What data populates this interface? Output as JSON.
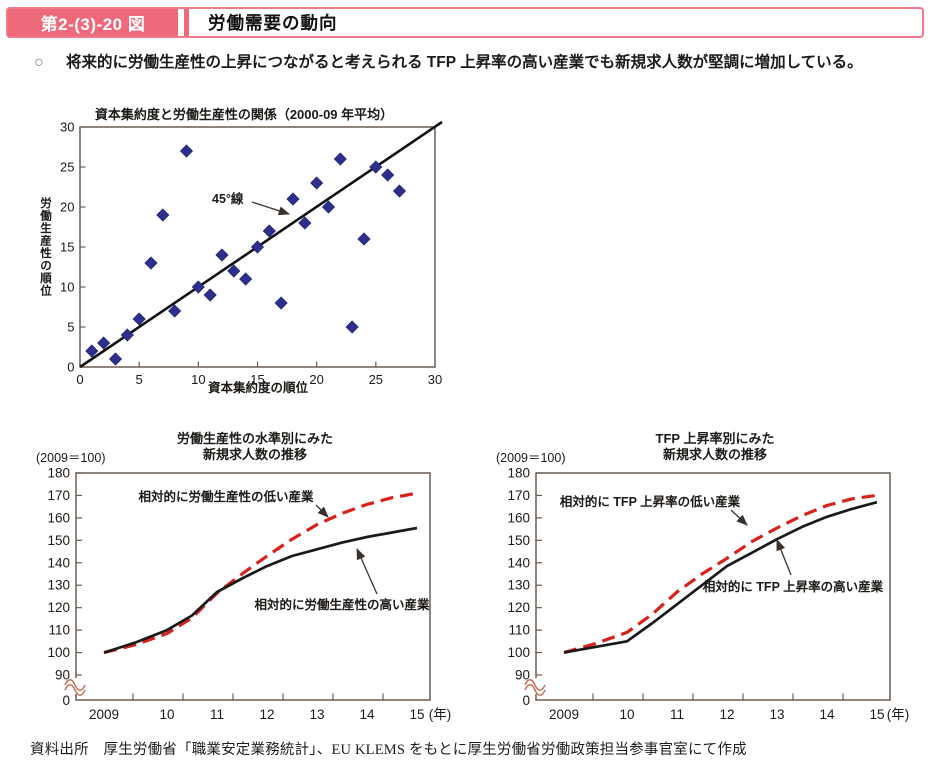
{
  "header": {
    "badge_label": "第2-(3)-20 図",
    "title": "労働需要の動向"
  },
  "lead": {
    "marker": "○",
    "text": "将来的に労働生産性の上昇につながると考えられる TFP 上昇率の高い産業でも新規求人数が堅調に増加している。"
  },
  "source": "資料出所　厚生労働省「職業安定業務統計」、EU KLEMS をもとに厚生労働省労働政策担当参事官室にて作成",
  "colors": {
    "accent_pink": "#ee6a7b",
    "border_pink": "#f2788c",
    "scatter_marker": "#2d2f8f",
    "line_red": "#d7211b",
    "line_black": "#1a1a1a",
    "frame": "#6a5d52"
  },
  "chart_data": [
    {
      "id": "capital-vs-productivity",
      "type": "scatter",
      "title": "資本集約度と労働生産性の関係（2000-09 年平均）",
      "xlabel": "資本集約度の順位",
      "ylabel": "労働生産性の順位",
      "xlim": [
        0,
        30
      ],
      "ylim": [
        0,
        30
      ],
      "xticks": [
        0,
        5,
        10,
        15,
        20,
        25,
        30
      ],
      "yticks": [
        0,
        5,
        10,
        15,
        20,
        25,
        30
      ],
      "marker": "diamond",
      "marker_color": "#2d2f8f",
      "points": [
        [
          1,
          2
        ],
        [
          2,
          3
        ],
        [
          3,
          1
        ],
        [
          4,
          4
        ],
        [
          5,
          6
        ],
        [
          6,
          13
        ],
        [
          7,
          19
        ],
        [
          8,
          7
        ],
        [
          9,
          27
        ],
        [
          10,
          10
        ],
        [
          11,
          9
        ],
        [
          12,
          14
        ],
        [
          13,
          12
        ],
        [
          14,
          11
        ],
        [
          15,
          15
        ],
        [
          16,
          17
        ],
        [
          17,
          8
        ],
        [
          18,
          21
        ],
        [
          19,
          18
        ],
        [
          20,
          23
        ],
        [
          21,
          20
        ],
        [
          22,
          26
        ],
        [
          23,
          5
        ],
        [
          24,
          16
        ],
        [
          25,
          25
        ],
        [
          26,
          24
        ],
        [
          27,
          22
        ]
      ],
      "reference_line": {
        "label": "45°線",
        "from": [
          0,
          0
        ],
        "to": [
          30,
          30
        ]
      }
    },
    {
      "id": "new-job-openings-by-productivity-level",
      "type": "line",
      "title_lines": [
        "労働生産性の水準別にみた",
        "新規求人数の推移"
      ],
      "unit_note": "(2009＝100)",
      "x_tick_labels": [
        "2009",
        "10",
        "11",
        "12",
        "13",
        "14",
        "15"
      ],
      "x_axis_suffix": "(年)",
      "xlim": [
        2009,
        2015
      ],
      "yticks": [
        180,
        170,
        160,
        150,
        140,
        130,
        120,
        110,
        100,
        90
      ],
      "y_base_label": "0",
      "axis_break": true,
      "ylim_display": [
        90,
        180
      ],
      "series": [
        {
          "name": "相対的に労働生産性の低い産業",
          "color": "#d7211b",
          "style": "dashed",
          "x": [
            2009,
            2009.5,
            2010,
            2010.5,
            2011,
            2011.5,
            2012,
            2012.5,
            2013,
            2013.5,
            2014,
            2014.5,
            2015
          ],
          "y": [
            100,
            103.5,
            108.5,
            115.5,
            126.5,
            135,
            143,
            150.5,
            157,
            162,
            166,
            169,
            171
          ]
        },
        {
          "name": "相対的に労働生産性の高い産業",
          "color": "#1a1a1a",
          "style": "solid",
          "x": [
            2009,
            2009.5,
            2010,
            2010.5,
            2011,
            2011.5,
            2012,
            2012.5,
            2013,
            2013.5,
            2014,
            2014.5,
            2015
          ],
          "y": [
            100,
            104.5,
            110,
            116.5,
            127,
            133,
            138.5,
            143,
            146,
            149,
            151.5,
            153.5,
            155.5
          ]
        }
      ]
    },
    {
      "id": "new-job-openings-by-tfp-growth",
      "type": "line",
      "title_lines": [
        "TFP 上昇率別にみた",
        "新規求人数の推移"
      ],
      "unit_note": "(2009＝100)",
      "x_tick_labels": [
        "2009",
        "10",
        "11",
        "12",
        "13",
        "14",
        "15"
      ],
      "x_axis_suffix": "(年)",
      "xlim": [
        2009,
        2015
      ],
      "yticks": [
        180,
        170,
        160,
        150,
        140,
        130,
        120,
        110,
        100,
        90
      ],
      "y_base_label": "0",
      "axis_break": true,
      "ylim_display": [
        90,
        180
      ],
      "series": [
        {
          "name": "相対的に TFP 上昇率の低い産業",
          "color": "#d7211b",
          "style": "dashed",
          "x": [
            2009,
            2009.5,
            2010,
            2010.5,
            2011,
            2011.5,
            2012,
            2012.5,
            2013,
            2013.5,
            2014,
            2014.5,
            2015
          ],
          "y": [
            100,
            104,
            109,
            117,
            127,
            135,
            142,
            149.5,
            155.5,
            161,
            165.5,
            168.5,
            170
          ]
        },
        {
          "name": "相対的に TFP 上昇率の高い産業",
          "color": "#1a1a1a",
          "style": "solid",
          "x": [
            2009,
            2009.5,
            2010,
            2010.5,
            2011,
            2011.5,
            2012,
            2012.5,
            2013,
            2013.5,
            2014,
            2014.5,
            2015
          ],
          "y": [
            100,
            102.5,
            105,
            113,
            121.5,
            130,
            138.5,
            144.5,
            150.5,
            156,
            160.5,
            164,
            167
          ]
        }
      ]
    }
  ]
}
